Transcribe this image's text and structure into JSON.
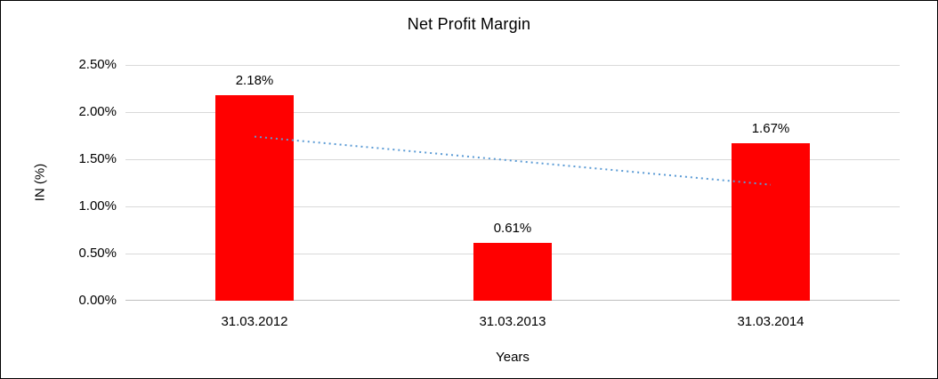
{
  "chart_data": {
    "type": "bar",
    "title": "Net Profit Margin",
    "categories": [
      "31.03.2012",
      "31.03.2013",
      "31.03.2014"
    ],
    "values": [
      2.18,
      0.61,
      1.67
    ],
    "labels": [
      "2.18%",
      "0.61%",
      "1.67%"
    ],
    "xlabel": "Years",
    "ylabel": "IN (%)",
    "ylim": [
      0,
      2.5
    ],
    "ytick_step": 0.5,
    "ytick_labels": [
      "0.00%",
      "0.50%",
      "1.00%",
      "1.50%",
      "2.00%",
      "2.50%"
    ],
    "bar_color": "#ff0000",
    "grid": true,
    "gridline_color": "#d9d9d9",
    "legend": "none",
    "trendline": {
      "type": "linear",
      "style": "dotted",
      "color": "#5b9bd5",
      "start_value": 1.74,
      "end_value": 1.23
    }
  }
}
